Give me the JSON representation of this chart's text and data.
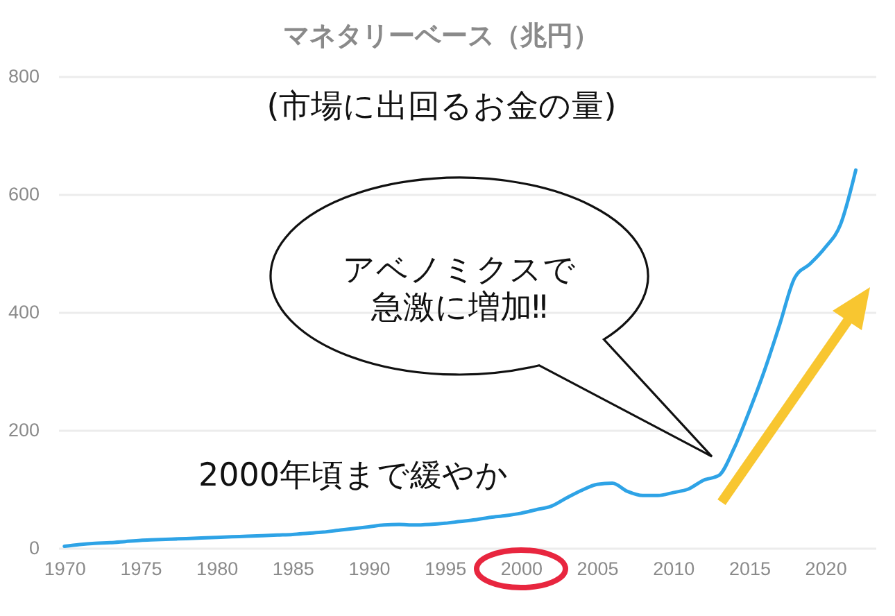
{
  "chart_data": {
    "type": "line",
    "title": "マネタリーベース（兆円）",
    "subtitle": "(市場に出回るお金の量)",
    "annotations": [
      "アベノミクスで急激に増加‼",
      "2000年頃まで緩やか"
    ],
    "x": [
      1970,
      1971,
      1972,
      1973,
      1974,
      1975,
      1976,
      1977,
      1978,
      1979,
      1980,
      1981,
      1982,
      1983,
      1984,
      1985,
      1986,
      1987,
      1988,
      1989,
      1990,
      1991,
      1992,
      1993,
      1994,
      1995,
      1996,
      1997,
      1998,
      1999,
      2000,
      2001,
      2002,
      2003,
      2004,
      2005,
      2006,
      2007,
      2008,
      2009,
      2010,
      2011,
      2012,
      2013,
      2014,
      2015,
      2016,
      2017,
      2018,
      2019,
      2020,
      2021,
      2022
    ],
    "series": [
      {
        "color": "#2ea3e6",
        "values": [
          3,
          6,
          8,
          9,
          11,
          13,
          14,
          15,
          16,
          17,
          18,
          19,
          20,
          21,
          22,
          23,
          25,
          27,
          30,
          33,
          36,
          39,
          40,
          39,
          40,
          42,
          45,
          48,
          52,
          55,
          59,
          65,
          71,
          85,
          98,
          108,
          110,
          96,
          89,
          89,
          94,
          100,
          115,
          123,
          169,
          232,
          301,
          379,
          459,
          482,
          510,
          549,
          641
        ]
      }
    ],
    "xlim": [
      1969.6,
      2023.3
    ],
    "xticks": [
      1970,
      1975,
      1980,
      1985,
      1990,
      1995,
      2000,
      2005,
      2010,
      2015,
      2020
    ],
    "ylim": [
      0,
      800
    ],
    "yticks": [
      0,
      200,
      400,
      600,
      800
    ],
    "grid": "y"
  }
}
